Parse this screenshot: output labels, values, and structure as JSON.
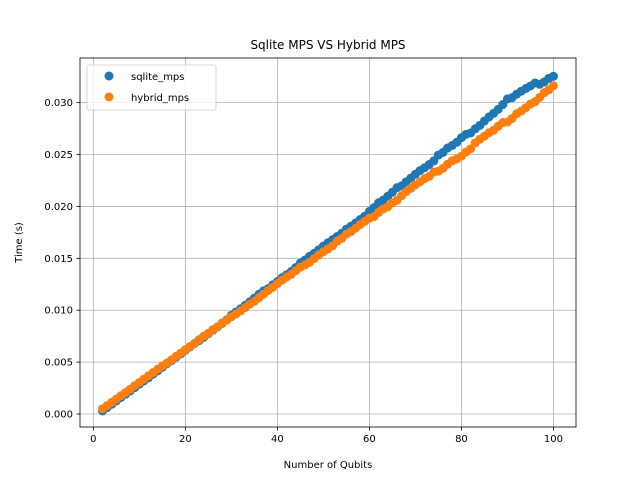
{
  "chart_data": {
    "type": "scatter",
    "title": "Sqlite MPS VS Hybrid MPS",
    "xlabel": "Number of Qubits",
    "ylabel": "Time (s)",
    "xlim": [
      -2.9,
      104.9
    ],
    "ylim": [
      -0.00125,
      0.0343
    ],
    "xticks": [
      0,
      20,
      40,
      60,
      80,
      100
    ],
    "xtick_labels": [
      "0",
      "20",
      "40",
      "60",
      "80",
      "100"
    ],
    "yticks": [
      0.0,
      0.005,
      0.01,
      0.015,
      0.02,
      0.025,
      0.03
    ],
    "ytick_labels": [
      "0.000",
      "0.005",
      "0.010",
      "0.015",
      "0.020",
      "0.025",
      "0.030"
    ],
    "grid": true,
    "legend": "upper-left",
    "series": [
      {
        "name": "sqlite_mps",
        "color": "#1f77b4",
        "x_start": 2,
        "x_end": 100,
        "y_points": [
          [
            2,
            0.0003
          ],
          [
            20,
            0.0061
          ],
          [
            40,
            0.0128
          ],
          [
            60,
            0.0195
          ],
          [
            70,
            0.0232
          ],
          [
            80,
            0.0265
          ],
          [
            90,
            0.0302
          ],
          [
            100,
            0.0327
          ]
        ]
      },
      {
        "name": "hybrid_mps",
        "color": "#ff7f0e",
        "x_start": 2,
        "x_end": 100,
        "y_points": [
          [
            2,
            0.0005
          ],
          [
            20,
            0.0062
          ],
          [
            40,
            0.0125
          ],
          [
            60,
            0.0188
          ],
          [
            70,
            0.022
          ],
          [
            80,
            0.025
          ],
          [
            90,
            0.0283
          ],
          [
            100,
            0.0315
          ]
        ]
      }
    ]
  }
}
